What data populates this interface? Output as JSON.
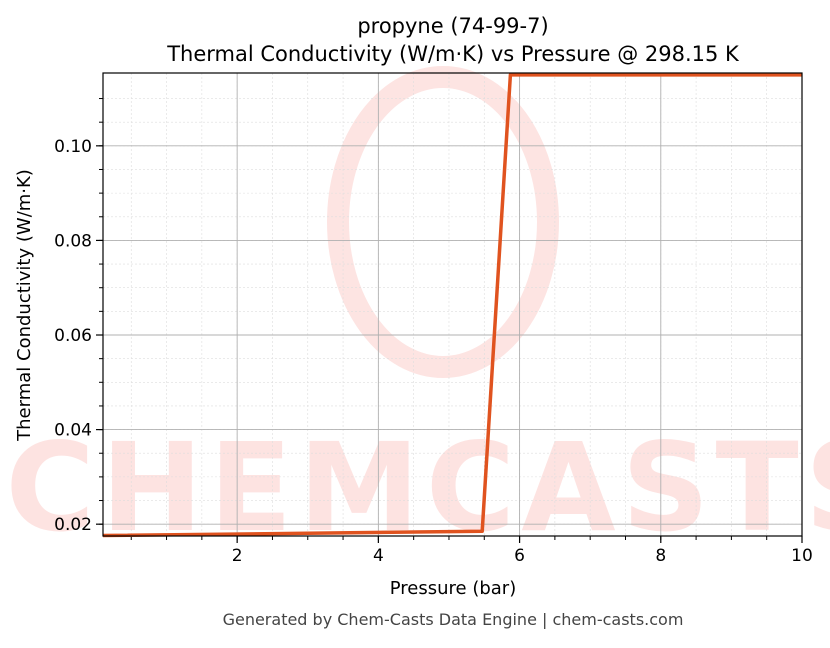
{
  "chart_data": {
    "type": "line",
    "title": "propyne (74-99-7)",
    "subtitle": "Thermal Conductivity (W/m·K) vs Pressure @ 298.15 K",
    "xlabel": "Pressure (bar)",
    "ylabel": "Thermal Conductivity (W/m·K)",
    "xlim": [
      0.1,
      10
    ],
    "ylim": [
      0.0175,
      0.1154
    ],
    "xticks": [
      "2",
      "4",
      "6",
      "8",
      "10"
    ],
    "xtick_values": [
      2,
      4,
      6,
      8,
      10
    ],
    "yticks": [
      "0.02",
      "0.04",
      "0.06",
      "0.08",
      "0.10"
    ],
    "ytick_values": [
      0.02,
      0.04,
      0.06,
      0.08,
      0.1
    ],
    "grid": true,
    "series": [
      {
        "color": "#e0531f",
        "x": [
          0.1,
          5.47,
          5.87,
          10
        ],
        "y": [
          0.0176,
          0.0185,
          0.115,
          0.115
        ]
      }
    ],
    "watermark": "CHEMCASTS"
  },
  "footer": "Generated by Chem-Casts Data Engine | chem-casts.com"
}
